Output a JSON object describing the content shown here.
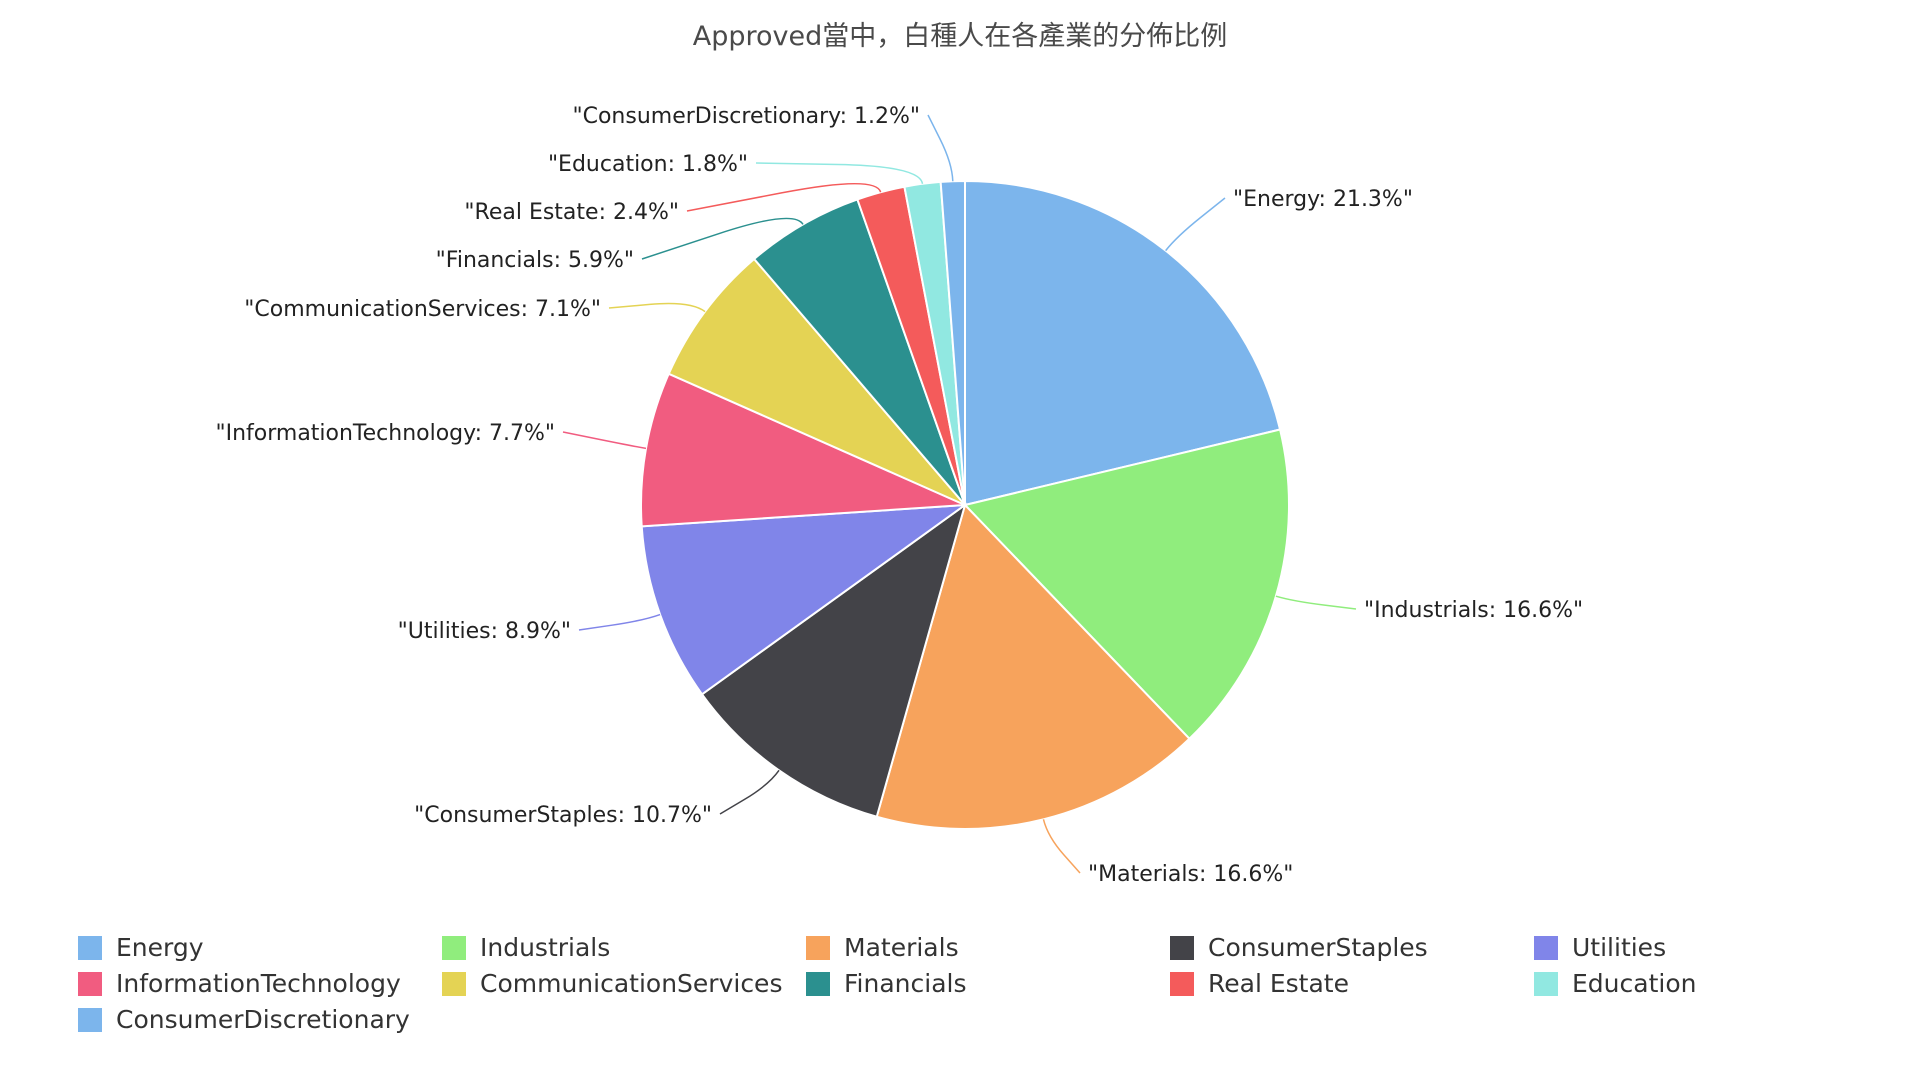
{
  "chart_data": {
    "type": "pie",
    "title": "Approved當中，白種人在各產業的分佈比例",
    "legend_position": "bottom",
    "slices": [
      {
        "name": "Energy",
        "value": 21.3,
        "label": "\"Energy: 21.3%\"",
        "color": "#7cb5ec"
      },
      {
        "name": "Industrials",
        "value": 16.6,
        "label": "\"Industrials: 16.6%\"",
        "color": "#90ed7d"
      },
      {
        "name": "Materials",
        "value": 16.6,
        "label": "\"Materials: 16.6%\"",
        "color": "#f7a35c"
      },
      {
        "name": "ConsumerStaples",
        "value": 10.7,
        "label": "\"ConsumerStaples: 10.7%\"",
        "color": "#434348"
      },
      {
        "name": "Utilities",
        "value": 8.9,
        "label": "\"Utilities: 8.9%\"",
        "color": "#8085e9"
      },
      {
        "name": "InformationTechnology",
        "value": 7.7,
        "label": "\"InformationTechnology: 7.7%\"",
        "color": "#f15c80"
      },
      {
        "name": "CommunicationServices",
        "value": 7.1,
        "label": "\"CommunicationServices: 7.1%\"",
        "color": "#e4d354"
      },
      {
        "name": "Financials",
        "value": 5.9,
        "label": "\"Financials: 5.9%\"",
        "color": "#2b908f"
      },
      {
        "name": "Real Estate",
        "value": 2.4,
        "label": "\"Real Estate: 2.4%\"",
        "color": "#f45b5b"
      },
      {
        "name": "Education",
        "value": 1.8,
        "label": "\"Education: 1.8%\"",
        "color": "#91e8e1"
      },
      {
        "name": "ConsumerDiscretionary",
        "value": 1.2,
        "label": "\"ConsumerDiscretionary: 1.2%\"",
        "color": "#7cb5ec"
      }
    ]
  }
}
